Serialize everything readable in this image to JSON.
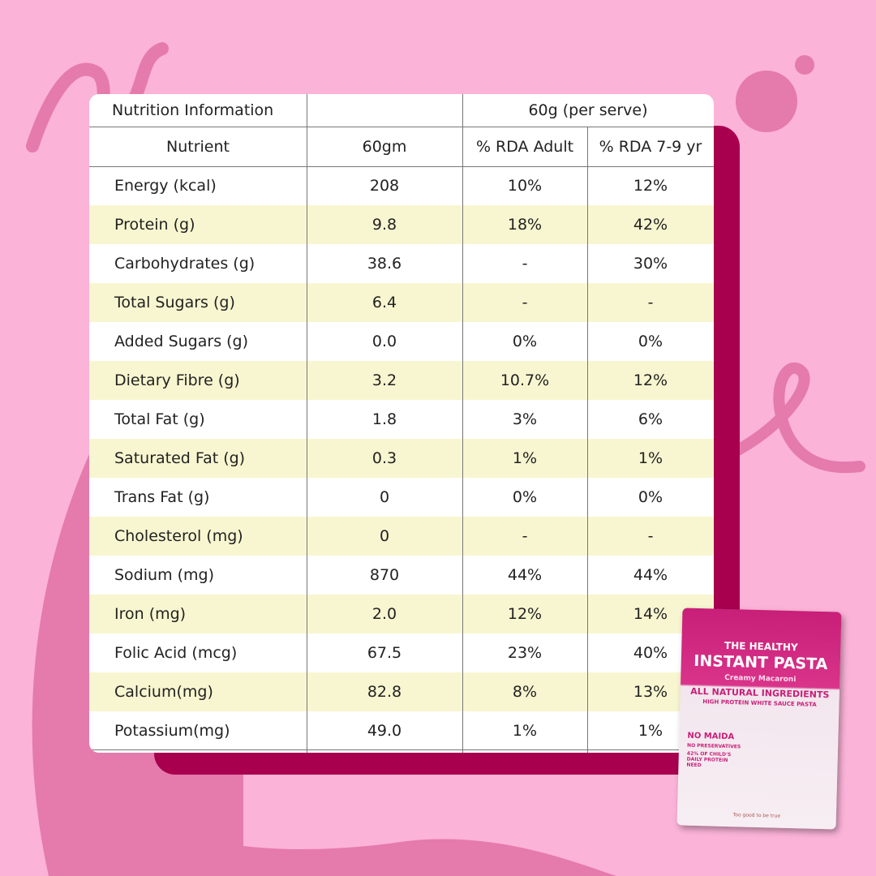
{
  "table": {
    "title": "Nutrition Information",
    "serve": "60g (per serve)",
    "columns": [
      "Nutrient",
      "60gm",
      "% RDA Adult",
      "% RDA 7-9 yr"
    ],
    "rows": [
      [
        "Energy (kcal)",
        "208",
        "10%",
        "12%"
      ],
      [
        "Protein (g)",
        "9.8",
        "18%",
        "42%"
      ],
      [
        "Carbohydrates (g)",
        "38.6",
        "-",
        "30%"
      ],
      [
        "Total Sugars (g)",
        "6.4",
        "-",
        "-"
      ],
      [
        "Added Sugars (g)",
        "0.0",
        "0%",
        "0%"
      ],
      [
        "Dietary Fibre (g)",
        "3.2",
        "10.7%",
        "12%"
      ],
      [
        "Total Fat (g)",
        "1.8",
        "3%",
        "6%"
      ],
      [
        "Saturated Fat (g)",
        "0.3",
        "1%",
        "1%"
      ],
      [
        "Trans Fat (g)",
        "0",
        "0%",
        "0%"
      ],
      [
        "Cholesterol (mg)",
        "0",
        "-",
        "-"
      ],
      [
        "Sodium (mg)",
        "870",
        "44%",
        "44%"
      ],
      [
        "Iron (mg)",
        "2.0",
        "12%",
        "14%"
      ],
      [
        "Folic Acid (mcg)",
        "67.5",
        "23%",
        "40%"
      ],
      [
        "Calcium(mg)",
        "82.8",
        "8%",
        "13%"
      ],
      [
        "Potassium(mg)",
        "49.0",
        "1%",
        "1%"
      ]
    ]
  },
  "package": {
    "line1": "THE HEALTHY",
    "line2": "INSTANT PASTA",
    "flavor": "Creamy Macaroni",
    "banner": "ALL NATURAL INGREDIENTS",
    "sub": "HIGH PROTEIN WHITE SAUCE PASTA",
    "badge1": "NO MAIDA",
    "badge2": "NO PRESERVATIVES",
    "badge3": "42% OF CHILD'S DAILY PROTEIN NEED",
    "tagline": "Too good to be true"
  }
}
